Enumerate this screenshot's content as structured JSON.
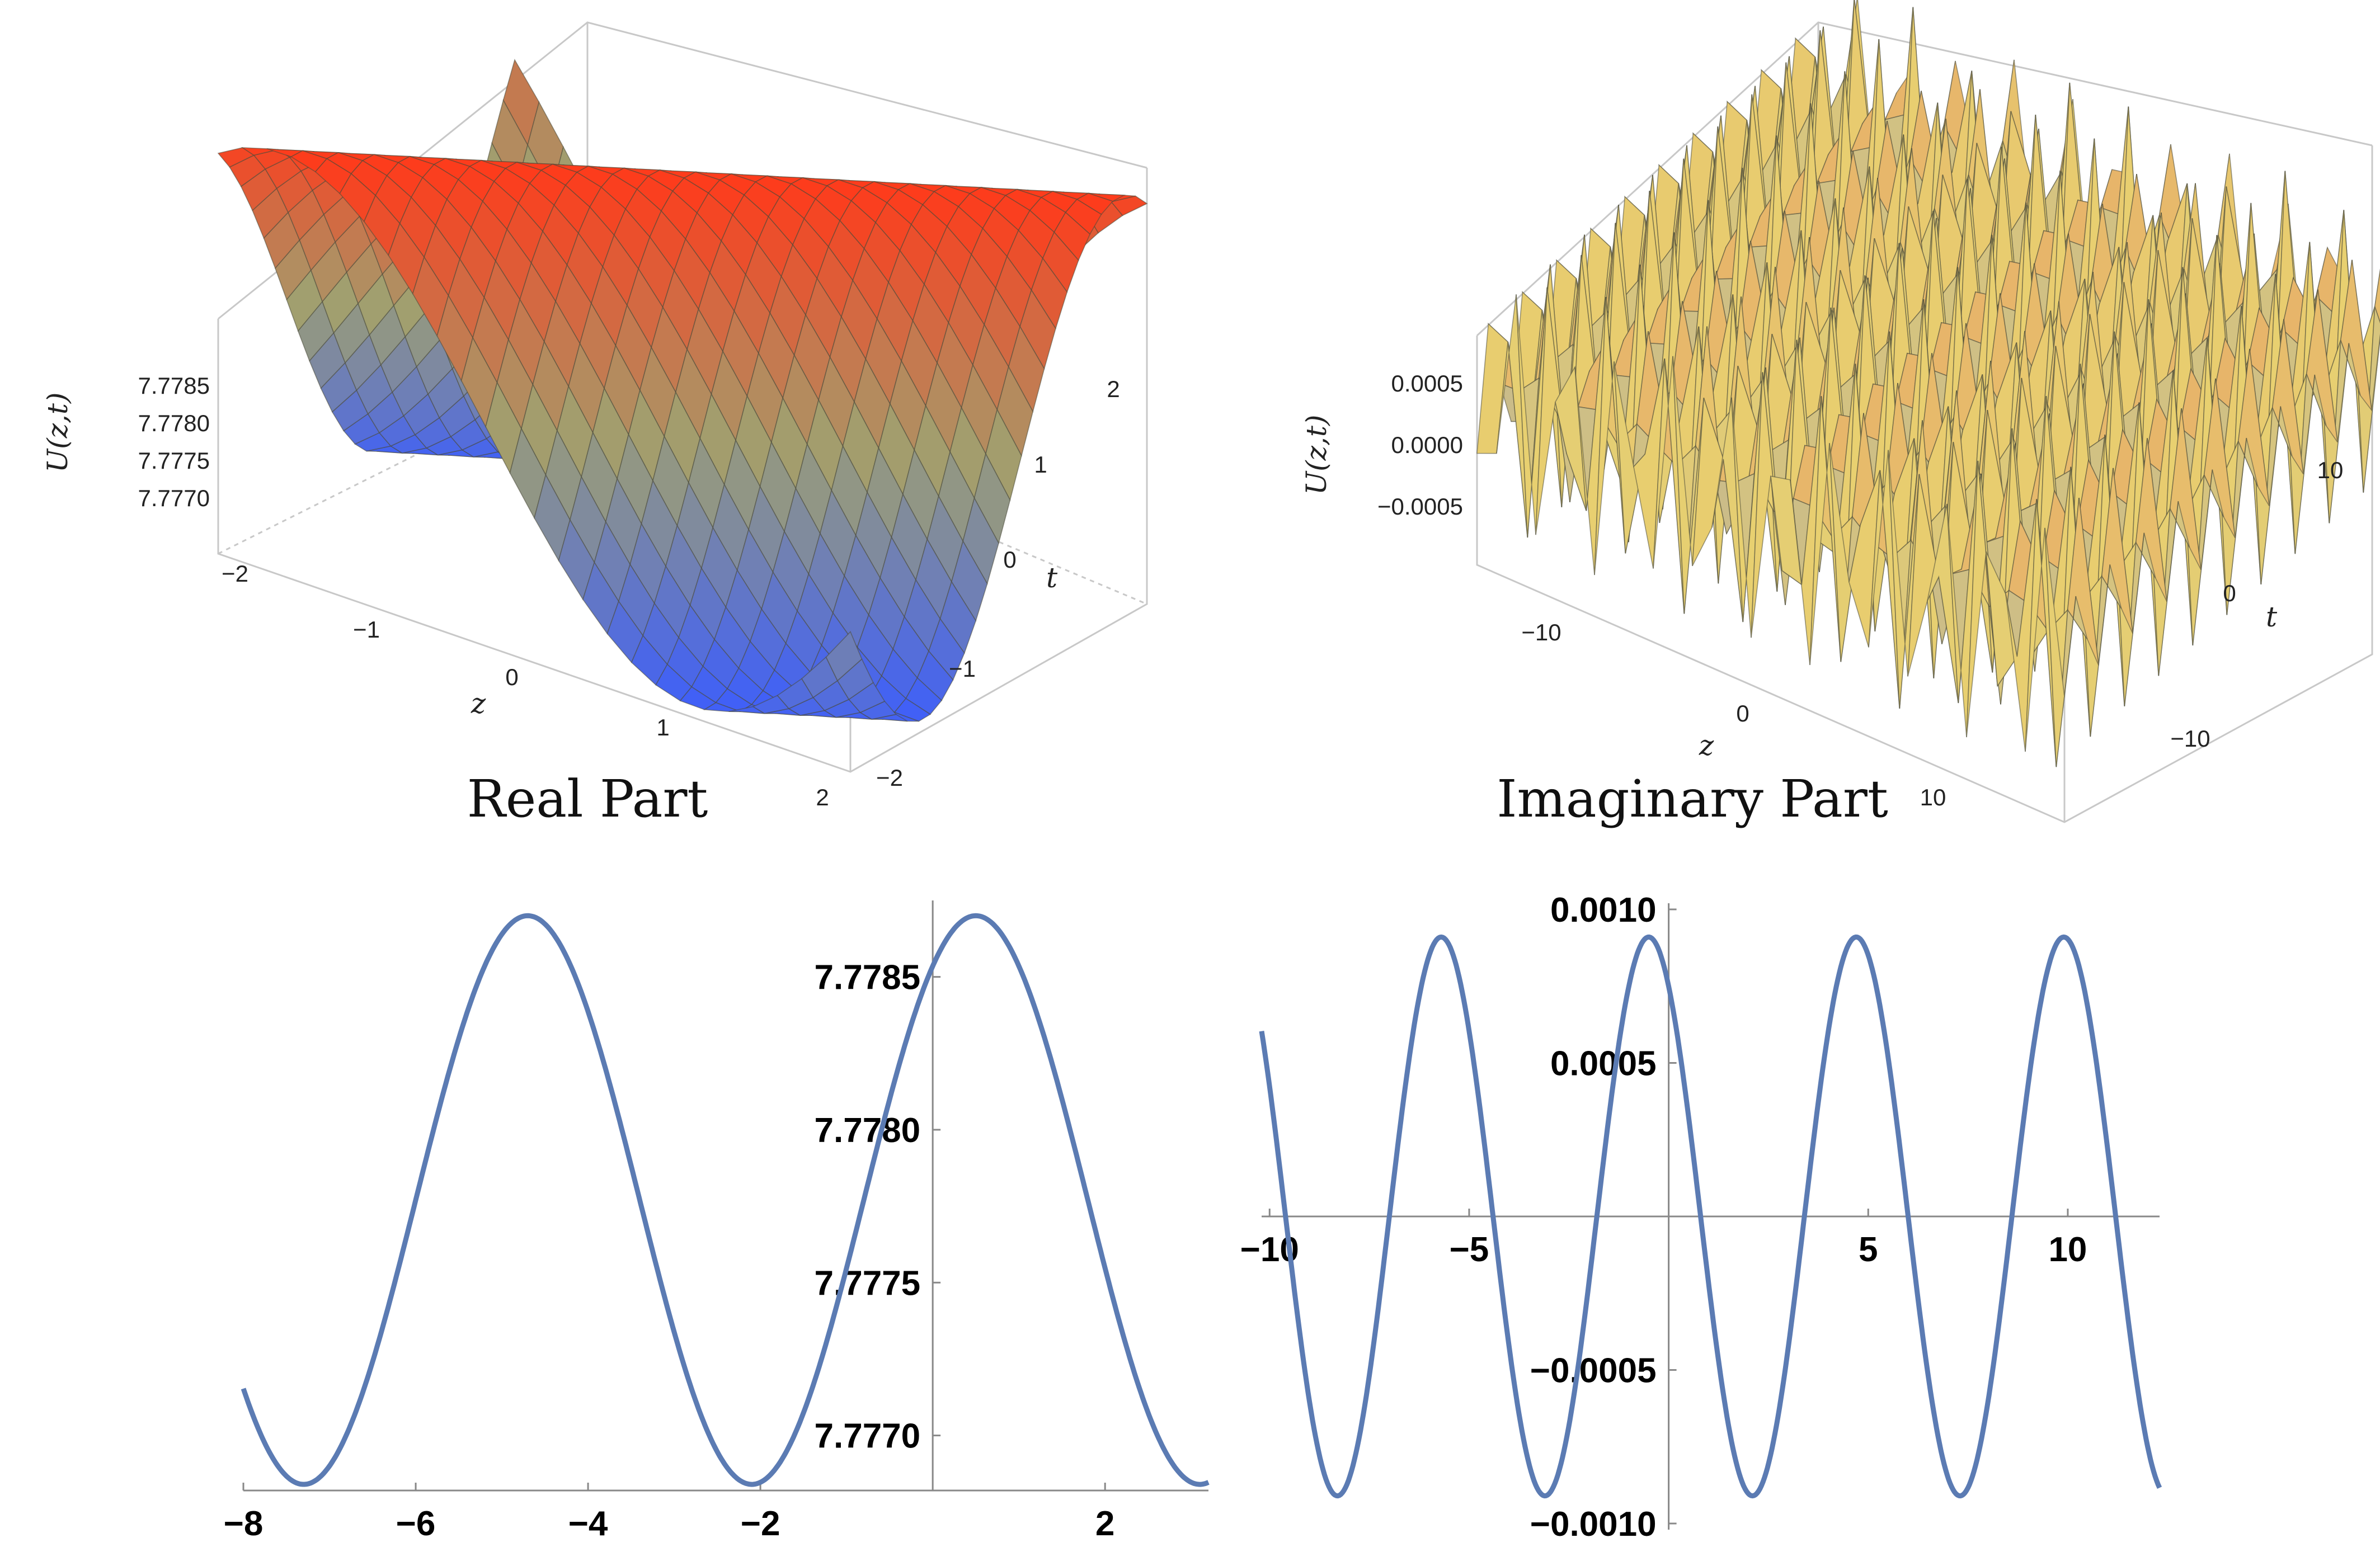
{
  "chart_data": [
    {
      "type": "surface3d",
      "caption": "Real Part",
      "zlabel": "U(z,t)",
      "xlabel": "z",
      "ylabel": "t",
      "xlim": [
        -2,
        2
      ],
      "ylim": [
        -2,
        2
      ],
      "zlim": [
        7.7768,
        7.7787
      ],
      "x_ticks": [
        "-2",
        "-1",
        "0",
        "1",
        "2"
      ],
      "y_ticks": [
        "-2",
        "-1",
        "0",
        "1",
        "2"
      ],
      "z_ticks": [
        "7.7770",
        "7.7775",
        "7.7780",
        "7.7785"
      ],
      "colormap": [
        "#3a5cff",
        "#a0a070",
        "#ff3a1a"
      ]
    },
    {
      "type": "surface3d",
      "caption": "Imaginary Part",
      "zlabel": "U(z,t)",
      "xlabel": "z",
      "ylabel": "t",
      "xlim": [
        -15,
        15
      ],
      "ylim": [
        -15,
        15
      ],
      "zlim": [
        -0.001,
        0.001
      ],
      "x_ticks": [
        "-10",
        "0",
        "10"
      ],
      "y_ticks": [
        "-10",
        "0",
        "10"
      ],
      "z_ticks": [
        "-0.0005",
        "0.0000",
        "0.0005"
      ],
      "colormap": [
        "#3a5cff",
        "#e8d070",
        "#e03a50"
      ]
    },
    {
      "type": "line",
      "xlim": [
        -8,
        3.2
      ],
      "ylim": [
        7.77682,
        7.77875
      ],
      "x_ticks": [
        -8,
        -6,
        -4,
        -2,
        2
      ],
      "x_tick_labels": [
        "−8",
        "−6",
        "−4",
        "−2",
        "2"
      ],
      "y_ticks": [
        7.777,
        7.7775,
        7.778,
        7.7785
      ],
      "y_tick_labels": [
        "7.7770",
        "7.7775",
        "7.7780",
        "7.7785"
      ],
      "series": [
        {
          "mean": 7.77777,
          "amplitude": 0.00093,
          "period": 5.2,
          "phase_zero_crossing": -6.0
        }
      ],
      "color": "#5b7bb3"
    },
    {
      "type": "line",
      "xlim": [
        -10.2,
        12.3
      ],
      "ylim": [
        -0.00102,
        0.00102
      ],
      "x_ticks": [
        -10,
        -5,
        5,
        10
      ],
      "x_tick_labels": [
        "−10",
        "−5",
        "5",
        "10"
      ],
      "y_ticks": [
        0.001,
        0.0005,
        -0.0005,
        -0.001
      ],
      "y_tick_labels": [
        "0.0010",
        "0.0005",
        "−0.0005",
        "−0.0010"
      ],
      "series": [
        {
          "mean": 0,
          "amplitude": 0.00091,
          "period": 5.2,
          "phase_zero_crossing": -7.0
        }
      ],
      "color": "#5b7bb3"
    }
  ]
}
